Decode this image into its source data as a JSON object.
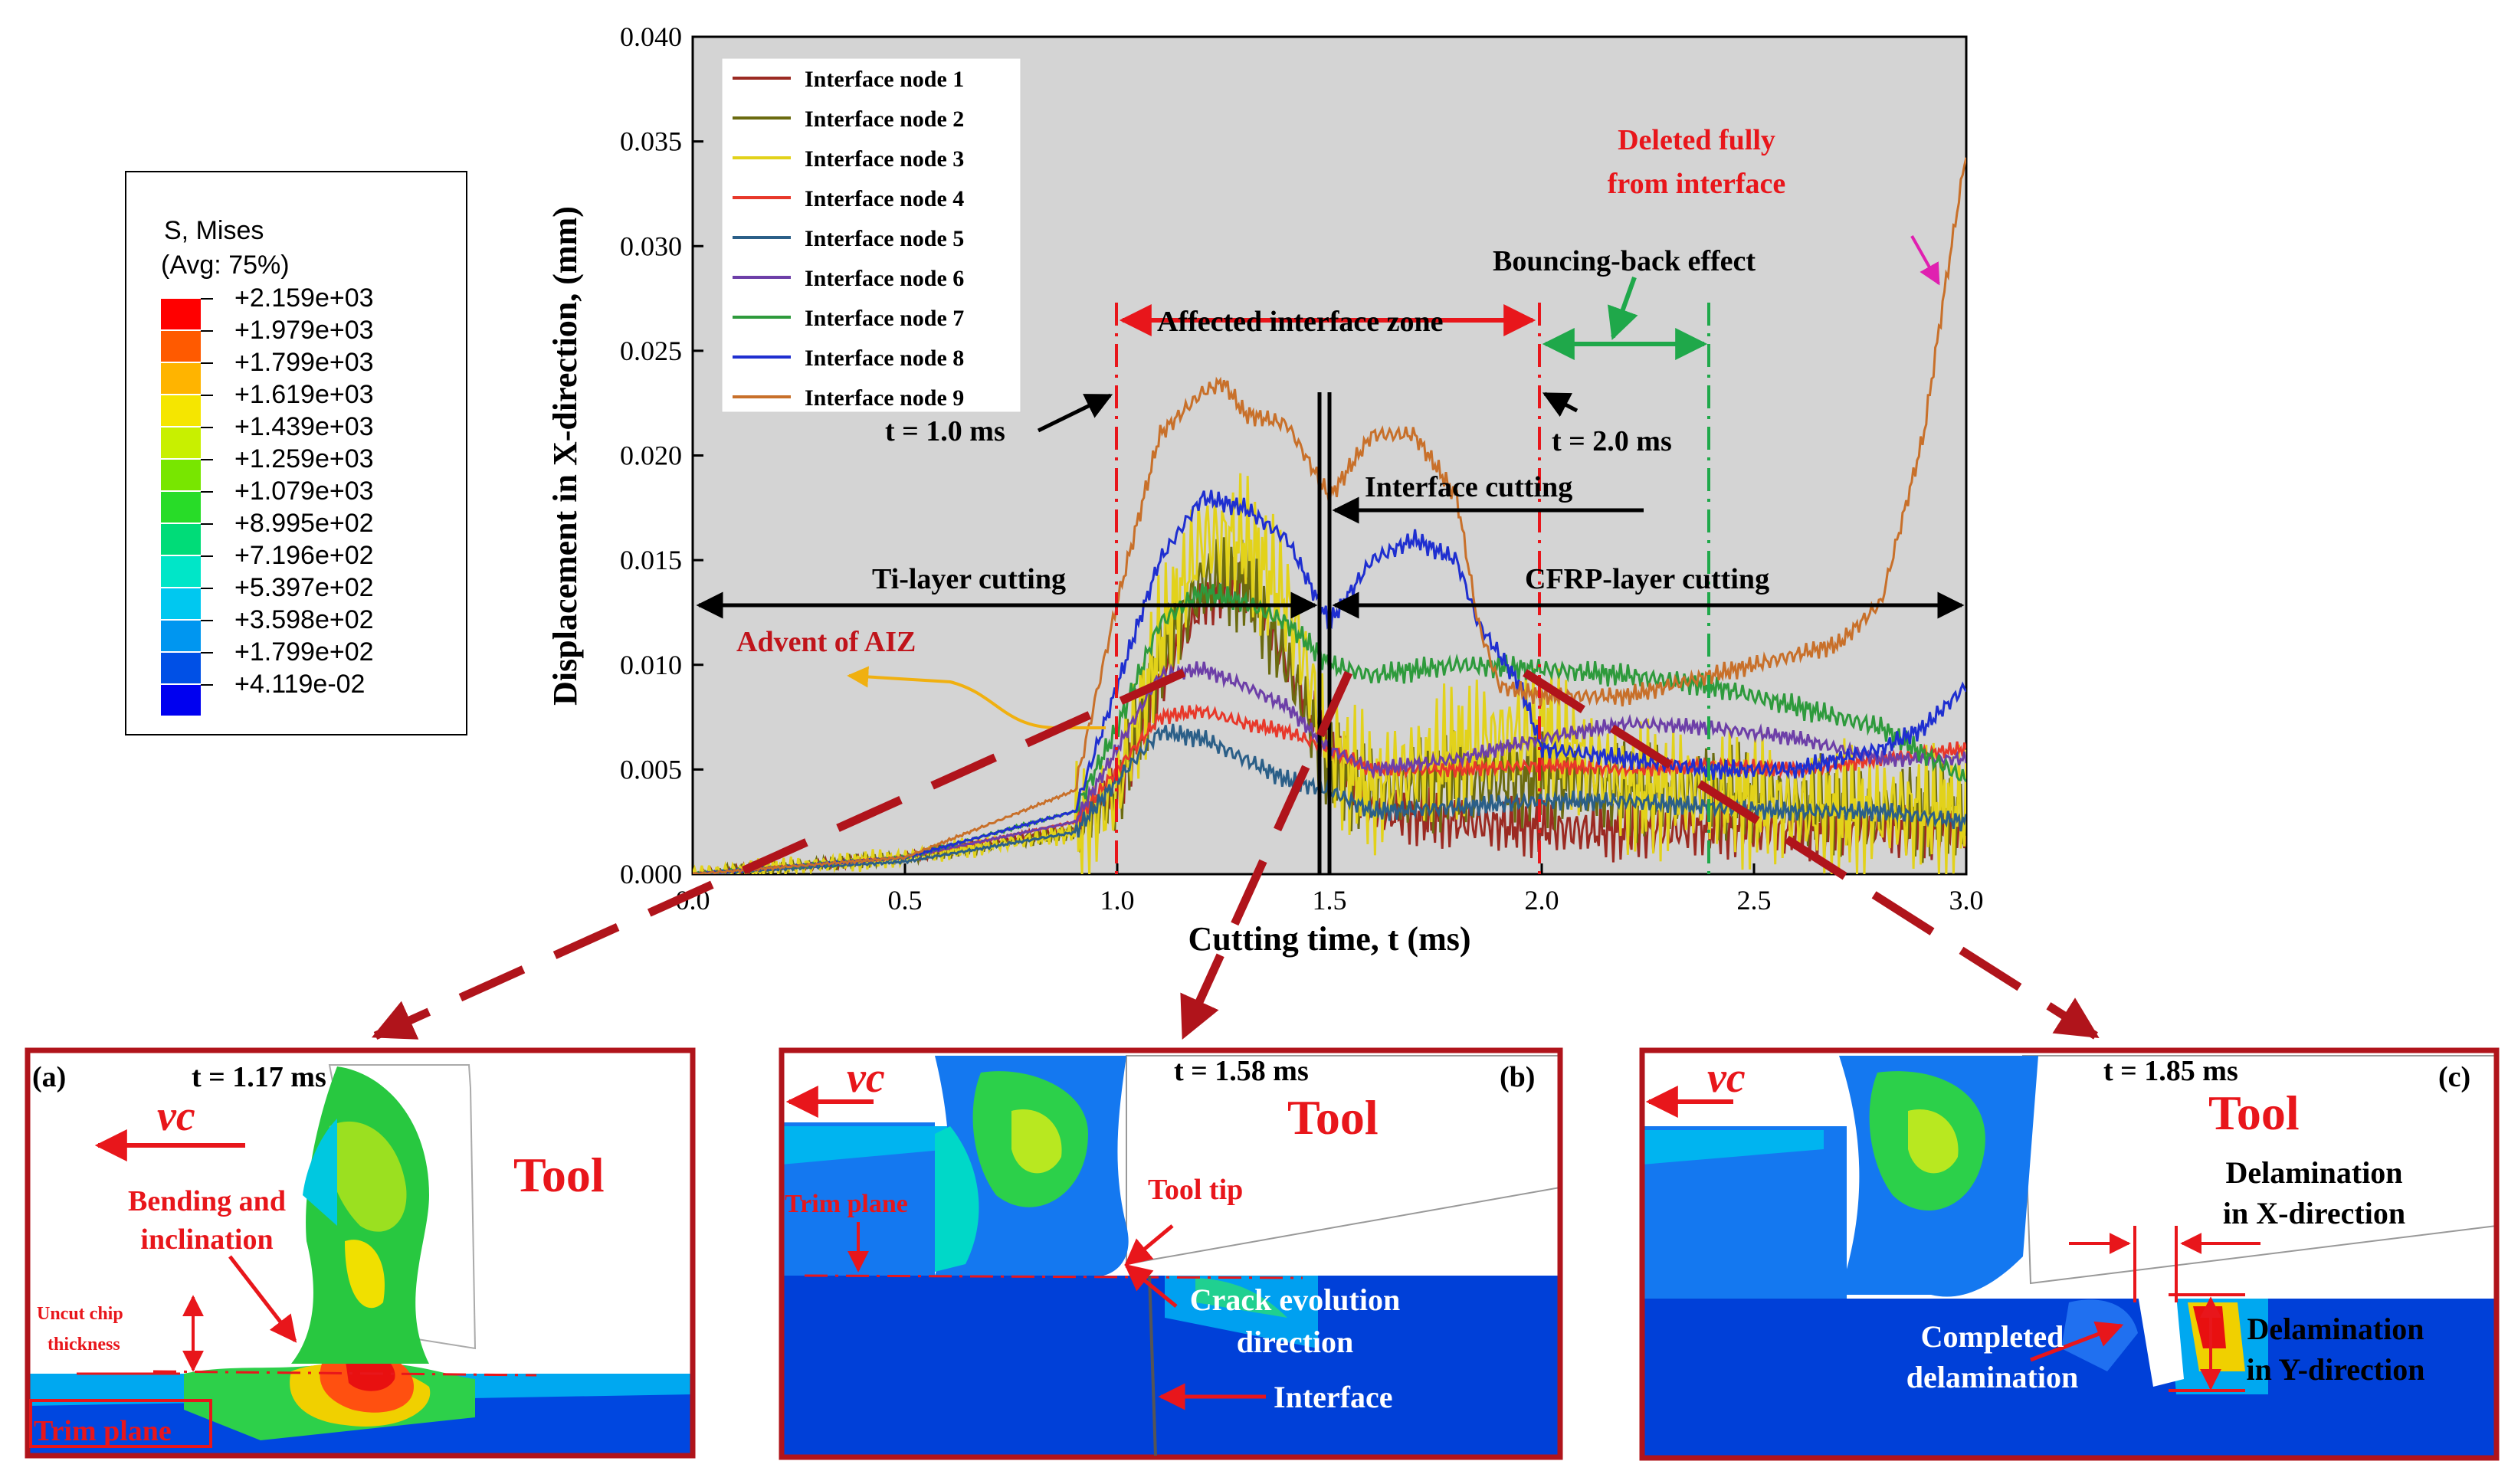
{
  "legend_box": {
    "title1": "S, Mises",
    "title2": "(Avg: 75%)",
    "levels": [
      {
        "label": "+2.159e+03",
        "color": "#ff0000"
      },
      {
        "label": "+1.979e+03",
        "color": "#ff5a00"
      },
      {
        "label": "+1.799e+03",
        "color": "#ffb400"
      },
      {
        "label": "+1.619e+03",
        "color": "#f5e600"
      },
      {
        "label": "+1.439e+03",
        "color": "#c8f000"
      },
      {
        "label": "+1.259e+03",
        "color": "#78e600"
      },
      {
        "label": "+1.079e+03",
        "color": "#28dc28"
      },
      {
        "label": "+8.995e+02",
        "color": "#00dc78"
      },
      {
        "label": "+7.196e+02",
        "color": "#00e6c8"
      },
      {
        "label": "+5.397e+02",
        "color": "#00c8f0"
      },
      {
        "label": "+3.598e+02",
        "color": "#0096f0"
      },
      {
        "label": "+1.799e+02",
        "color": "#0050e6"
      },
      {
        "label": "+4.119e-02",
        "color": "#0000f0"
      }
    ]
  },
  "chart_data": {
    "type": "line",
    "xlabel": "Cutting time, t (ms)",
    "ylabel": "Displacement in X-direction, (mm)",
    "xlim": [
      0,
      3.0
    ],
    "ylim": [
      0,
      0.04
    ],
    "xticks": [
      "0.0",
      "0.5",
      "1.0",
      "1.5",
      "2.0",
      "2.5",
      "3.0"
    ],
    "yticks": [
      "0.000",
      "0.005",
      "0.010",
      "0.015",
      "0.020",
      "0.025",
      "0.030",
      "0.035",
      "0.040"
    ],
    "legend_position": "top-left",
    "series": [
      {
        "name": "Interface node 1",
        "color": "#9b2a22",
        "t": [
          0,
          0.5,
          0.9,
          1.0,
          1.1,
          1.2,
          1.3,
          1.4,
          1.5,
          1.6,
          1.8,
          2.0,
          2.2,
          2.4,
          2.6,
          2.8,
          3.0
        ],
        "y": [
          0,
          0.0008,
          0.0022,
          0.004,
          0.009,
          0.013,
          0.014,
          0.01,
          0.006,
          0.003,
          0.0025,
          0.0022,
          0.002,
          0.0022,
          0.002,
          0.0022,
          0.002
        ],
        "noise": 0.0015
      },
      {
        "name": "Interface node 2",
        "color": "#6b6b10",
        "t": [
          0,
          0.5,
          0.9,
          1.0,
          1.1,
          1.2,
          1.3,
          1.4,
          1.5,
          1.6,
          1.8,
          2.0,
          2.2,
          2.4,
          2.6,
          2.8,
          3.0
        ],
        "y": [
          0,
          0.0008,
          0.002,
          0.004,
          0.01,
          0.014,
          0.014,
          0.01,
          0.005,
          0.004,
          0.0045,
          0.0045,
          0.004,
          0.004,
          0.0035,
          0.003,
          0.003
        ],
        "noise": 0.0025
      },
      {
        "name": "Interface node 3",
        "color": "#e2d21a",
        "t": [
          0,
          0.5,
          0.9,
          1.0,
          1.1,
          1.2,
          1.3,
          1.4,
          1.5,
          1.6,
          1.8,
          2.0,
          2.2,
          2.4,
          2.6,
          2.8,
          3.0
        ],
        "y": [
          0,
          0.0008,
          0.002,
          0.004,
          0.011,
          0.016,
          0.016,
          0.013,
          0.006,
          0.004,
          0.006,
          0.007,
          0.004,
          0.004,
          0.003,
          0.003,
          0.003
        ],
        "noise": 0.0035
      },
      {
        "name": "Interface node 4",
        "color": "#e8382a",
        "t": [
          0,
          0.5,
          0.9,
          1.0,
          1.1,
          1.2,
          1.3,
          1.4,
          1.5,
          1.6,
          1.8,
          2.0,
          2.2,
          2.4,
          2.6,
          2.8,
          3.0
        ],
        "y": [
          0,
          0.0008,
          0.0025,
          0.005,
          0.0075,
          0.0078,
          0.0072,
          0.0068,
          0.006,
          0.005,
          0.005,
          0.0052,
          0.005,
          0.0052,
          0.005,
          0.0055,
          0.006
        ],
        "noise": 0.0004
      },
      {
        "name": "Interface node 5",
        "color": "#2b5f88",
        "t": [
          0,
          0.5,
          0.9,
          1.0,
          1.1,
          1.2,
          1.3,
          1.4,
          1.5,
          1.6,
          1.8,
          2.0,
          2.2,
          2.4,
          2.6,
          2.8,
          3.0
        ],
        "y": [
          0,
          0.0006,
          0.002,
          0.0045,
          0.0068,
          0.0065,
          0.0055,
          0.0045,
          0.004,
          0.003,
          0.0032,
          0.0035,
          0.0035,
          0.0032,
          0.003,
          0.003,
          0.0025
        ],
        "noise": 0.0005
      },
      {
        "name": "Interface node 6",
        "color": "#6d3fa8",
        "t": [
          0,
          0.5,
          0.9,
          1.0,
          1.1,
          1.2,
          1.3,
          1.4,
          1.5,
          1.6,
          1.8,
          2.0,
          2.2,
          2.4,
          2.6,
          2.8,
          3.0
        ],
        "y": [
          0,
          0.0008,
          0.0025,
          0.006,
          0.0095,
          0.0098,
          0.009,
          0.008,
          0.006,
          0.005,
          0.0055,
          0.0065,
          0.0072,
          0.007,
          0.0065,
          0.0055,
          0.0055
        ],
        "noise": 0.0004
      },
      {
        "name": "Interface node 7",
        "color": "#2e9a3c",
        "t": [
          0,
          0.5,
          0.9,
          1.0,
          1.1,
          1.2,
          1.3,
          1.4,
          1.5,
          1.6,
          1.8,
          2.0,
          2.2,
          2.4,
          2.6,
          2.8,
          3.0
        ],
        "y": [
          0,
          0.0008,
          0.003,
          0.007,
          0.012,
          0.0135,
          0.013,
          0.012,
          0.01,
          0.0095,
          0.01,
          0.0098,
          0.0095,
          0.009,
          0.008,
          0.007,
          0.0045
        ],
        "noise": 0.0006
      },
      {
        "name": "Interface node 8",
        "color": "#1f2fd0",
        "t": [
          0,
          0.5,
          0.9,
          1.0,
          1.1,
          1.2,
          1.3,
          1.4,
          1.5,
          1.6,
          1.7,
          1.8,
          1.85,
          1.95,
          2.0,
          2.2,
          2.4,
          2.6,
          2.8,
          2.9,
          3.0
        ],
        "y": [
          0,
          0.0008,
          0.003,
          0.009,
          0.015,
          0.018,
          0.0175,
          0.016,
          0.012,
          0.015,
          0.016,
          0.015,
          0.012,
          0.009,
          0.006,
          0.0055,
          0.005,
          0.005,
          0.006,
          0.007,
          0.009
        ],
        "noise": 0.0005
      },
      {
        "name": "Interface node 9",
        "color": "#c8702a",
        "t": [
          0,
          0.5,
          0.9,
          1.0,
          1.1,
          1.2,
          1.25,
          1.3,
          1.4,
          1.5,
          1.6,
          1.7,
          1.8,
          1.85,
          1.9,
          2.0,
          2.2,
          2.4,
          2.6,
          2.7,
          2.8,
          2.9,
          2.95,
          3.0
        ],
        "y": [
          0,
          0.0008,
          0.004,
          0.013,
          0.021,
          0.023,
          0.0235,
          0.022,
          0.0215,
          0.018,
          0.021,
          0.021,
          0.018,
          0.012,
          0.009,
          0.0085,
          0.0085,
          0.0095,
          0.0105,
          0.011,
          0.013,
          0.021,
          0.028,
          0.0345
        ],
        "noise": 0.0005
      }
    ],
    "annotations": {
      "t1": "t = 1.0 ms",
      "t2": "t = 2.0 ms",
      "affected": "Affected interface zone",
      "bouncing": "Bouncing-back effect",
      "deleted1": "Deleted fully",
      "deleted2": "from interface",
      "interface_cutting": "Interface cutting",
      "ti_layer": "Ti-layer cutting",
      "cfrp_layer": "CFRP-layer cutting",
      "aiz": "Advent of AIZ"
    }
  },
  "panels": {
    "a": {
      "letter": "(a)",
      "time": "t = 1.17 ms",
      "velocity": "vc",
      "tool": "Tool",
      "bending1": "Bending and",
      "bending2": "inclination",
      "uncut1": "Uncut chip",
      "uncut2": "thickness",
      "trim": "Trim plane"
    },
    "b": {
      "letter": "(b)",
      "time": "t = 1.58 ms",
      "velocity": "vc",
      "tool": "Tool",
      "trim": "Trim plane",
      "tooltip": "Tool tip",
      "crack1": "Crack evolution",
      "crack2": "direction",
      "interface": "Interface"
    },
    "c": {
      "letter": "(c)",
      "time": "t = 1.85 ms",
      "velocity": "vc",
      "tool": "Tool",
      "delamx1": "Delamination",
      "delamx2": "in X-direction",
      "delamy1": "Delamination",
      "delamy2": "in Y-direction",
      "complete1": "Completed",
      "complete2": "delamination"
    }
  }
}
